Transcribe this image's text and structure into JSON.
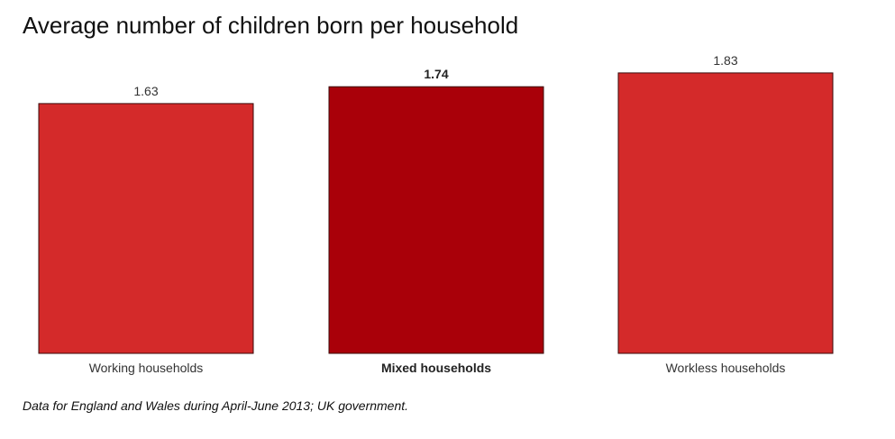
{
  "chart_data": {
    "type": "bar",
    "title": "Average number of children born per household",
    "categories": [
      "Working households",
      "Mixed households",
      "Workless households"
    ],
    "values": [
      1.63,
      1.74,
      1.83
    ],
    "value_labels": [
      "1.63",
      "1.74",
      "1.83"
    ],
    "highlighted_category": "Mixed households",
    "colors": {
      "default_bar": "#d42a2a",
      "highlight_bar": "#a90009",
      "bar_outline": "#3a0a0a",
      "label_text": "#333333"
    },
    "xlabel": "",
    "ylabel": "",
    "grid": false,
    "legend": "none",
    "note": "Data for England and Wales during April-June 2013; UK government."
  }
}
